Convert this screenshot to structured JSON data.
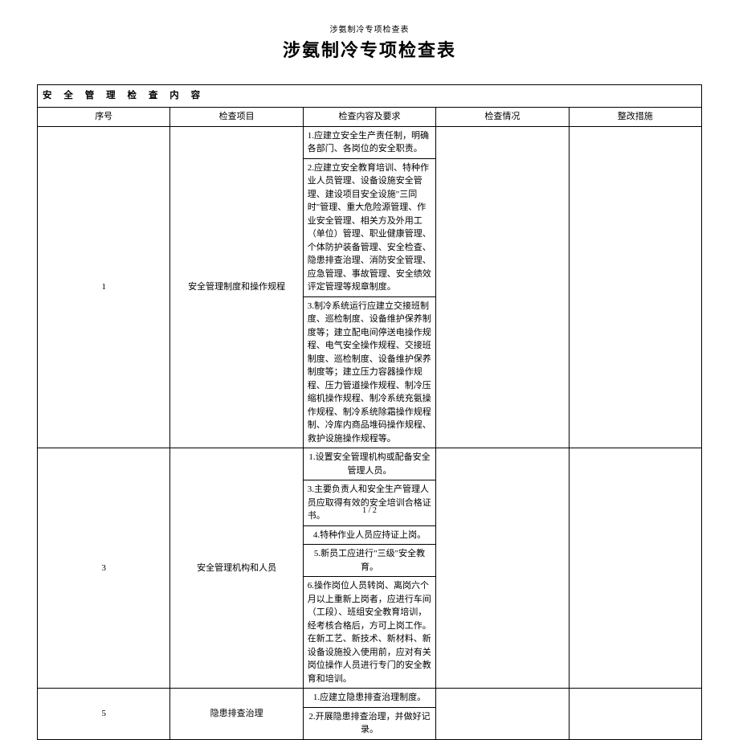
{
  "header": {
    "small_title": "涉氨制冷专项检查表",
    "large_title": "涉氨制冷专项检查表"
  },
  "section_title": "安 全 管 理 检 查 内 容",
  "columns": {
    "seq": "序号",
    "item": "检查项目",
    "content": "检查内容及要求",
    "status": "检查情况",
    "action": "整改措施"
  },
  "rows": [
    {
      "seq": "1",
      "item": "安全管理制度和操作规程",
      "contents": [
        {
          "text": "1.应建立安全生产责任制，明确各部门、各岗位的安全职责。",
          "align": "left"
        },
        {
          "text": "2.应建立安全教育培训、特种作业人员管理、设备设施安全管理、建设项目安全设施\"三同时\"管理、重大危险源管理、作业安全管理、相关方及外用工（单位）管理、职业健康管理、个体防护装备管理、安全检查、隐患排查治理、消防安全管理、应急管理、事故管理、安全绩效评定管理等规章制度。",
          "align": "left"
        },
        {
          "text": "3.制冷系统运行应建立交接班制度、巡检制度、设备维护保养制度等；建立配电间停送电操作规程、电气安全操作规程、交接班制度、巡检制度、设备维护保养制度等；建立压力容器操作规程、压力管道操作规程、制冷压缩机操作规程、制冷系统充氨操作规程、制冷系统除霜操作规程制、冷库内商品堆码操作规程、救护设施操作规程等。",
          "align": "left"
        }
      ]
    },
    {
      "seq": "3",
      "item": "安全管理机构和人员",
      "contents": [
        {
          "text": "1.设置安全管理机构或配备安全管理人员。",
          "align": "center"
        },
        {
          "text": "3.主要负责人和安全生产管理人员应取得有效的安全培训合格证书。",
          "align": "left"
        },
        {
          "text": "4.特种作业人员应持证上岗。",
          "align": "center"
        },
        {
          "text": "5.新员工应进行\"三级\"安全教育。",
          "align": "center"
        },
        {
          "text": "6.操作岗位人员转岗、离岗六个月以上重新上岗者，应进行车间（工段）、班组安全教育培训，经考核合格后，方可上岗工作。在新工艺、新技术、新材料、新设备设施投入使用前，应对有关岗位操作人员进行专门的安全教育和培训。",
          "align": "left"
        }
      ]
    },
    {
      "seq": "5",
      "item": "隐患排查治理",
      "contents": [
        {
          "text": "1.应建立隐患排查治理制度。",
          "align": "center"
        },
        {
          "text": "2.开展隐患排查治理，并做好记录。",
          "align": "center"
        }
      ]
    }
  ],
  "page_number": "1 / 2",
  "colors": {
    "text": "#000000",
    "background": "#ffffff",
    "border": "#000000"
  }
}
